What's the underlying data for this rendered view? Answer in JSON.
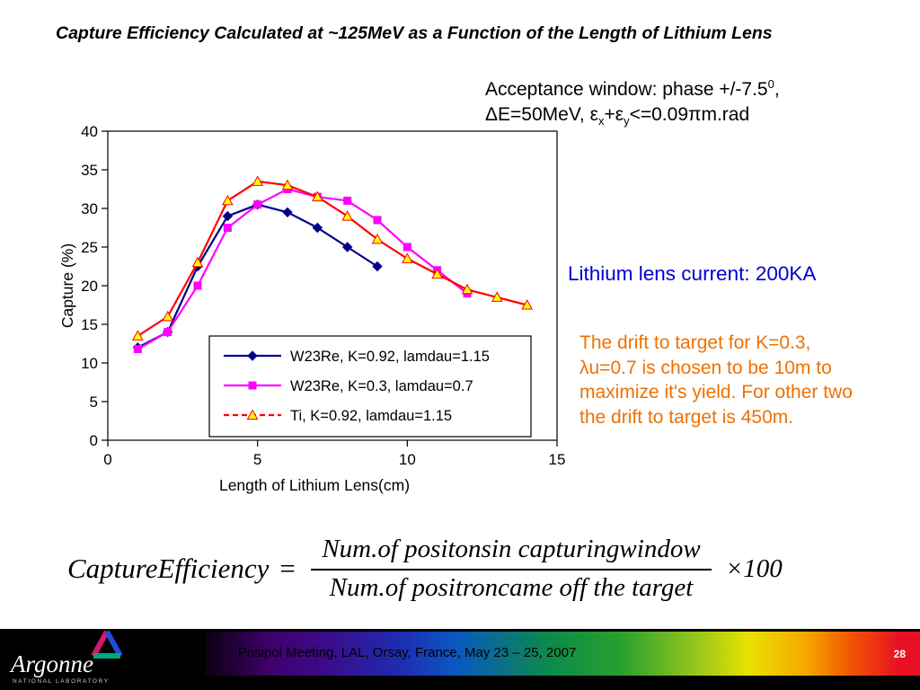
{
  "slide": {
    "title": "Capture Efficiency Calculated at ~125MeV as a Function of the Length of Lithium Lens"
  },
  "acceptance": {
    "line1_text": "Acceptance window: phase +/-7.5",
    "line1_sup": "0",
    "line1_tail": ",",
    "line2_part1": "ΔE=50MeV, ε",
    "line2_sub1": "x",
    "line2_part2": "+ε",
    "line2_sub2": "y",
    "line2_part3": "<=0.09πm.rad"
  },
  "annotations": {
    "lens_current": "Lithium lens current: 200KA",
    "lens_current_color": "#0000cc",
    "drift_note": "The drift to target for K=0.3,\nλu=0.7 is chosen to be 10m to\nmaximize it's yield.  For other two\nthe drift to target is 450m.",
    "drift_color": "#f07000"
  },
  "formula": {
    "lhs": "CaptureEfficiency",
    "equals": "=",
    "numerator": "Num.of  positonsin capturingwindow",
    "denominator": "Num.of  positroncame off the target",
    "multiplier": "×100"
  },
  "chart_data": {
    "type": "line",
    "title": "",
    "xlabel": "Length  of Lithium Lens(cm)",
    "ylabel": "Capture (%)",
    "xlim": [
      0,
      15
    ],
    "ylim": [
      0,
      40
    ],
    "x_ticks": [
      0,
      5,
      10,
      15
    ],
    "y_ticks": [
      0,
      5,
      10,
      15,
      20,
      25,
      30,
      35,
      40
    ],
    "grid": false,
    "legend_position": "inside-bottom",
    "series": [
      {
        "name": "W23Re, K=0.92, lamdau=1.15",
        "color": "#00008b",
        "marker": "diamond",
        "marker_color": "#00008b",
        "x": [
          1,
          2,
          3,
          4,
          5,
          6,
          7,
          8,
          9
        ],
        "y": [
          12,
          14,
          22.5,
          29,
          30.5,
          29.5,
          27.5,
          25,
          22.5
        ]
      },
      {
        "name": "W23Re, K=0.3, lamdau=0.7",
        "color": "#ff00ff",
        "marker": "square",
        "marker_color": "#ff00ff",
        "x": [
          1,
          2,
          3,
          4,
          5,
          6,
          7,
          8,
          9,
          10,
          11,
          12
        ],
        "y": [
          11.8,
          14,
          20,
          27.5,
          30.5,
          32.5,
          31.5,
          31,
          28.5,
          25,
          22,
          19
        ]
      },
      {
        "name": "Ti, K=0.92, lamdau=1.15",
        "color": "#ff0000",
        "marker": "triangle",
        "marker_color": "#ffff00",
        "x": [
          1,
          2,
          3,
          4,
          5,
          6,
          7,
          8,
          9,
          10,
          11,
          12,
          13,
          14
        ],
        "y": [
          13.5,
          16,
          23,
          31,
          33.5,
          33,
          31.5,
          29,
          26,
          23.5,
          21.5,
          19.5,
          18.5,
          17.5
        ]
      }
    ]
  },
  "footer": {
    "meeting": "Posipol Meeting, LAL, Orsay, France, May 23 – 25, 2007",
    "page_number": "28",
    "logo_name": "Argonne",
    "logo_subtitle": "NATIONAL LABORATORY"
  }
}
